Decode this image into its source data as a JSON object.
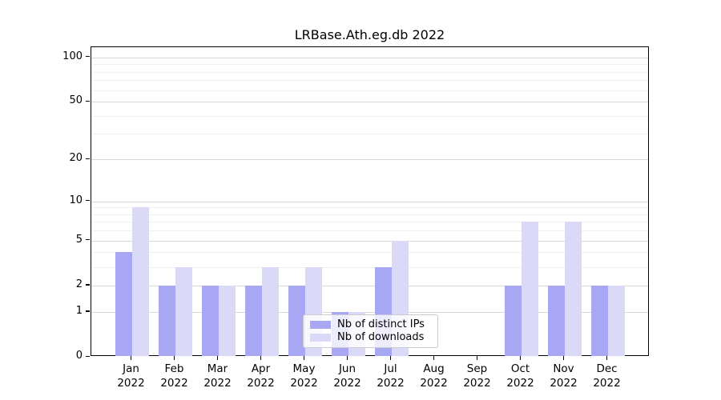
{
  "chart_data": {
    "type": "bar",
    "title": "LRBase.Ath.eg.db 2022",
    "categories": [
      "Jan",
      "Feb",
      "Mar",
      "Apr",
      "May",
      "Jun",
      "Jul",
      "Aug",
      "Sep",
      "Oct",
      "Nov",
      "Dec"
    ],
    "category_year": "2022",
    "series": [
      {
        "name": "Nb of distinct IPs",
        "color": "#a7a7f4",
        "values": [
          4,
          2,
          2,
          2,
          2,
          1,
          3,
          0,
          0,
          2,
          2,
          2
        ]
      },
      {
        "name": "Nb of downloads",
        "color": "#dadaf8",
        "values": [
          9,
          3,
          2,
          3,
          3,
          1,
          5,
          0,
          0,
          7,
          7,
          2
        ]
      }
    ],
    "yscale": "log1p",
    "ylim": [
      0,
      100
    ],
    "yticks": [
      0,
      1,
      2,
      5,
      10,
      20,
      50,
      100
    ],
    "minor_gridlines": [
      3,
      4,
      6,
      7,
      8,
      9,
      30,
      40,
      60,
      70,
      80,
      90
    ],
    "grid": true,
    "legend_position": "lower center",
    "major_grid_color": "#d8d8d8",
    "minor_grid_color": "#f0f0f0"
  }
}
